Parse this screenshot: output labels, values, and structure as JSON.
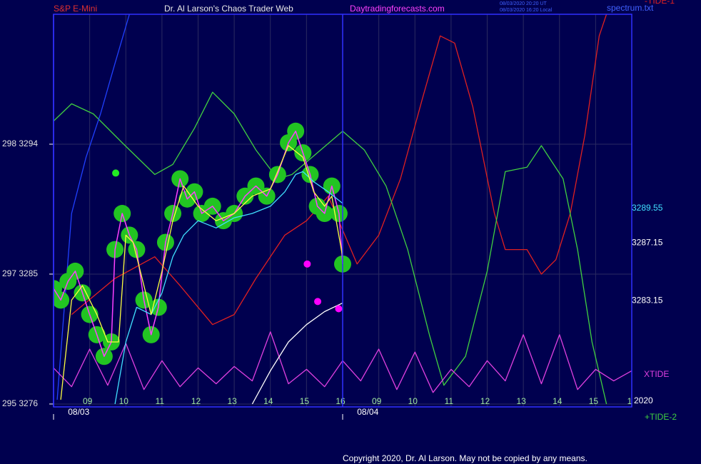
{
  "header": {
    "left": "S&P E-Mini",
    "center": "Dr. Al Larson's Chaos Trader Web",
    "site": "Daytradingforecasts.com",
    "stamp": [
      "08/03/2020 20:20 UT",
      "08/03/2020 16:20 Local"
    ],
    "file": "spectrum.txt"
  },
  "footer": "Copyright 2020, Dr. Al Larson. May not be copied by any means.",
  "chart_data": {
    "type": "line",
    "xlim": [
      8,
      24
    ],
    "ylim": [
      3275.8,
      3303.0
    ],
    "yticks": [
      {
        "value": 3294,
        "label": "298  3294"
      },
      {
        "value": 3285,
        "label": "297  3285"
      },
      {
        "value": 3276,
        "label": "295  3276"
      }
    ],
    "xticks": [
      {
        "value": 9,
        "label": "09"
      },
      10,
      11,
      12,
      13,
      14,
      15,
      16,
      {
        "value": 17,
        "label": "09"
      },
      {
        "value": 18,
        "label": "10"
      },
      {
        "value": 19,
        "label": "11"
      },
      {
        "value": 20,
        "label": "12"
      },
      {
        "value": 21,
        "label": "13"
      },
      {
        "value": 22,
        "label": "14"
      },
      {
        "value": 23,
        "label": "15"
      },
      {
        "value": 24,
        "label": "1"
      }
    ],
    "date_labels": [
      {
        "value": 8.4,
        "label": "08/03"
      },
      {
        "value": 16.4,
        "label": "08/04"
      }
    ],
    "session_breaks": [
      8,
      16
    ],
    "right_labels": [
      3289.55,
      3287.15,
      3283.15
    ],
    "right_label_colors": [
      "#40e0ff",
      "#ffffff",
      "#ffffff"
    ],
    "year_label": "2020",
    "grid": true,
    "series": [
      {
        "name": "-TIDE-1",
        "color": "#e02020",
        "x": [
          8.5,
          9.7,
          10.8,
          11.5,
          12.4,
          13.0,
          13.6,
          14.4,
          15.0,
          15.6,
          16.4,
          17.0,
          17.6,
          18.2,
          18.7,
          19.1,
          19.6,
          20.2,
          20.5,
          21.1,
          21.5,
          21.9,
          22.3,
          22.7,
          23.1,
          23.3
        ],
        "values": [
          3282.2,
          3284.7,
          3286.2,
          3284.2,
          3281.5,
          3282.2,
          3284.7,
          3287.7,
          3288.7,
          3290.4,
          3285.7,
          3287.7,
          3291.6,
          3297.1,
          3301.5,
          3301.0,
          3296.6,
          3289.2,
          3286.7,
          3286.7,
          3285.0,
          3286.0,
          3289.2,
          3294.6,
          3301.5,
          3303.0
        ]
      },
      {
        "name": "+TIDE-2",
        "color": "#40d040",
        "x": [
          8.0,
          8.5,
          9.1,
          9.9,
          10.8,
          11.3,
          11.9,
          12.4,
          13.0,
          13.6,
          14.2,
          14.6,
          16.0,
          16.6,
          17.2,
          17.8,
          18.4,
          18.8,
          19.4,
          20.0,
          20.5,
          21.1,
          21.5,
          22.1,
          22.5,
          22.9,
          23.3
        ],
        "values": [
          3295.6,
          3296.8,
          3296.1,
          3294.1,
          3291.9,
          3292.6,
          3295.1,
          3297.6,
          3296.1,
          3293.6,
          3291.6,
          3291.9,
          3294.9,
          3293.6,
          3291.1,
          3286.7,
          3280.8,
          3277.3,
          3279.3,
          3285.2,
          3292.1,
          3292.4,
          3293.9,
          3291.6,
          3286.7,
          3280.3,
          3276.0
        ]
      },
      {
        "color": "#2040ff",
        "x": [
          8.1,
          8.5,
          8.9,
          9.3,
          9.7,
          10.1
        ],
        "values": [
          3276.3,
          3289.2,
          3293.1,
          3296.1,
          3299.6,
          3303.0
        ]
      },
      {
        "name": "XTIDE",
        "color": "#e040e0",
        "x": [
          8.0,
          8.5,
          9.0,
          9.5,
          10.0,
          10.5,
          11.0,
          11.5,
          12.0,
          12.5,
          13.0,
          13.5,
          14.0,
          14.5,
          15.0,
          15.5,
          16.0,
          16.5,
          17.0,
          17.5,
          18.0,
          18.5,
          19.0,
          19.5,
          20.0,
          20.5,
          21.0,
          21.5,
          22.0,
          22.5,
          23.0,
          23.5,
          24.0
        ],
        "values": [
          3278.5,
          3277.2,
          3279.8,
          3277.3,
          3280.2,
          3277.0,
          3279.0,
          3277.2,
          3278.5,
          3277.4,
          3278.6,
          3277.6,
          3281.0,
          3277.4,
          3278.4,
          3277.2,
          3279.0,
          3277.6,
          3279.8,
          3277.0,
          3279.6,
          3276.8,
          3278.4,
          3277.2,
          3279.0,
          3277.6,
          3280.8,
          3277.4,
          3280.8,
          3277.0,
          3278.4,
          3277.6,
          3278.3
        ]
      },
      {
        "color": "#ff40ff",
        "bubbles": "#22c422",
        "x": [
          8.0,
          8.2,
          8.4,
          8.6,
          8.8,
          9.0,
          9.2,
          9.4,
          9.6,
          9.7,
          9.9,
          10.1,
          10.3,
          10.5,
          10.7,
          10.9,
          11.1,
          11.3,
          11.5,
          11.7,
          11.9,
          12.1,
          12.4,
          12.7,
          13.0,
          13.3,
          13.6,
          13.9,
          14.2,
          14.5,
          14.7,
          14.9,
          15.1,
          15.3,
          15.5,
          15.7,
          15.9,
          16.0
        ],
        "values": [
          3284.0,
          3283.2,
          3284.5,
          3285.2,
          3283.7,
          3282.2,
          3280.8,
          3279.3,
          3280.3,
          3286.7,
          3289.2,
          3287.7,
          3286.7,
          3283.2,
          3280.8,
          3282.7,
          3287.2,
          3289.2,
          3291.6,
          3290.2,
          3290.7,
          3289.2,
          3289.7,
          3288.7,
          3289.2,
          3290.4,
          3291.1,
          3290.4,
          3291.9,
          3294.1,
          3294.9,
          3293.4,
          3291.9,
          3289.7,
          3289.2,
          3291.1,
          3289.2,
          3285.7
        ]
      },
      {
        "color": "#ffffff",
        "x": [
          13.5,
          14.0,
          14.5,
          15.0,
          15.5,
          16.0
        ],
        "values": [
          3276.0,
          3278.3,
          3280.3,
          3281.5,
          3282.4,
          3283.0
        ]
      },
      {
        "color": "#40e0ff",
        "x": [
          9.7,
          10.0,
          10.3,
          10.7,
          11.0,
          11.3,
          11.6,
          12.0,
          12.5,
          13.0,
          13.5,
          14.0,
          14.4,
          14.7,
          14.9,
          15.2,
          15.6,
          16.0
        ],
        "values": [
          3276.0,
          3280.3,
          3282.7,
          3282.2,
          3283.7,
          3286.2,
          3287.7,
          3288.7,
          3288.2,
          3288.9,
          3289.2,
          3289.7,
          3290.7,
          3291.9,
          3292.1,
          3291.4,
          3290.7,
          3289.9
        ]
      },
      {
        "color": "#ffff40",
        "x": [
          8.2,
          8.5,
          8.8,
          9.2,
          9.5,
          9.8,
          10.0,
          10.2,
          10.5,
          10.7,
          11.0,
          11.3,
          11.6,
          12.0,
          12.5,
          13.0,
          13.5,
          14.0,
          14.5,
          14.9,
          15.2,
          15.5,
          15.7,
          16.0
        ],
        "values": [
          3276.3,
          3283.2,
          3284.2,
          3282.2,
          3280.3,
          3280.3,
          3287.7,
          3287.2,
          3284.2,
          3282.2,
          3285.2,
          3288.7,
          3291.1,
          3289.7,
          3288.7,
          3289.2,
          3290.4,
          3290.9,
          3293.9,
          3293.1,
          3290.7,
          3289.7,
          3290.4,
          3286.2
        ]
      },
      {
        "color": "#ff00ff",
        "style": "dots",
        "x": [
          15.02,
          15.31,
          15.89
        ],
        "values": [
          3285.7,
          3283.1,
          3282.6
        ]
      },
      {
        "color": "#22ee22",
        "style": "dots",
        "x": [
          9.72
        ],
        "values": [
          3292.0
        ]
      }
    ]
  }
}
